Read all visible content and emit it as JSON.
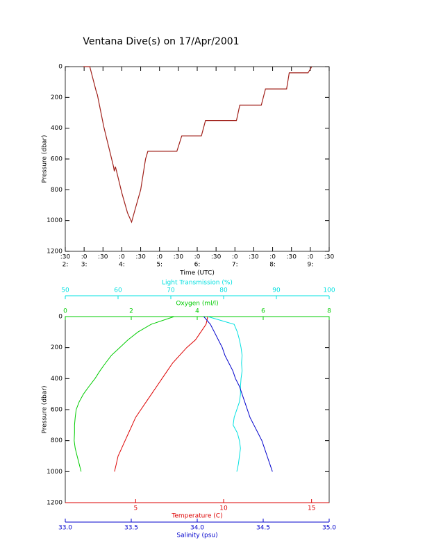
{
  "chart_data": [
    {
      "type": "line",
      "title": "Ventana Dive(s) on 17/Apr/2001",
      "xlabel": "Time (UTC)",
      "ylabel": "Pressure (dbar)",
      "xlim": [
        2.5,
        9.5
      ],
      "xticks": [
        {
          "value": 2.5,
          "label": ":30"
        },
        {
          "value": 3,
          "label": ":0"
        },
        {
          "value": 3.5,
          "label": ":30"
        },
        {
          "value": 4,
          "label": ":0"
        },
        {
          "value": 4.5,
          "label": ":30"
        },
        {
          "value": 5,
          "label": ":0"
        },
        {
          "value": 5.5,
          "label": ":30"
        },
        {
          "value": 6,
          "label": ":0"
        },
        {
          "value": 6.5,
          "label": ":30"
        },
        {
          "value": 7,
          "label": ":0"
        },
        {
          "value": 7.5,
          "label": ":30"
        },
        {
          "value": 8,
          "label": ":0"
        },
        {
          "value": 8.5,
          "label": ":30"
        },
        {
          "value": 9,
          "label": ":0"
        },
        {
          "value": 9.5,
          "label": ":30"
        }
      ],
      "xticks_hours": [
        {
          "value": 2.5,
          "label": "2:"
        },
        {
          "value": 3,
          "label": "3:"
        },
        {
          "value": 4,
          "label": "4:"
        },
        {
          "value": 5,
          "label": "5:"
        },
        {
          "value": 6,
          "label": "6:"
        },
        {
          "value": 7,
          "label": "7:"
        },
        {
          "value": 8,
          "label": "8:"
        },
        {
          "value": 9,
          "label": "9:"
        }
      ],
      "ylim": [
        1200,
        0
      ],
      "yticks": [
        0,
        200,
        400,
        600,
        800,
        1000,
        1200
      ],
      "x": [
        2.98,
        3.15,
        3.33,
        3.35,
        3.52,
        3.78,
        3.8,
        3.83,
        3.87,
        4.0,
        4.15,
        4.26,
        4.35,
        4.5,
        4.63,
        4.69,
        5.46,
        5.59,
        6.11,
        6.22,
        7.04,
        7.13,
        7.7,
        7.81,
        8.37,
        8.44,
        8.94,
        9.04
      ],
      "series": [
        {
          "color": "#a0201a",
          "values": [
            0,
            0,
            170,
            180,
            390,
            650,
            680,
            650,
            690,
            820,
            950,
            1010,
            930,
            800,
            600,
            550,
            550,
            450,
            450,
            350,
            350,
            250,
            250,
            145,
            145,
            40,
            40,
            0
          ]
        }
      ]
    },
    {
      "type": "profile",
      "ylabel": "Pressure (dbar)",
      "ylim": [
        1200,
        0
      ],
      "yticks": [
        0,
        200,
        400,
        600,
        800,
        1000,
        1200
      ],
      "y": [
        0,
        50,
        100,
        150,
        200,
        250,
        300,
        350,
        400,
        450,
        500,
        550,
        600,
        650,
        700,
        750,
        800,
        850,
        900,
        950,
        1000
      ],
      "axes": [
        {
          "label": "Oxygen (ml/l)",
          "color": "#00cc00",
          "lim": [
            0,
            8
          ],
          "ticks": [
            0,
            2,
            4,
            6,
            8
          ],
          "side": "top"
        },
        {
          "label": "Light Transmission (%)",
          "color": "#00e0e0",
          "lim": [
            50,
            100
          ],
          "ticks": [
            50,
            60,
            70,
            80,
            90,
            100
          ],
          "side": "top"
        },
        {
          "label": "Temperature (C)",
          "color": "#dd0000",
          "lim": [
            1,
            16
          ],
          "ticks": [
            5,
            10,
            15
          ],
          "side": "bottom"
        },
        {
          "label": "Salinity (psu)",
          "color": "#0000cc",
          "lim": [
            33,
            35
          ],
          "ticks": [
            {
              "value": 33,
              "label": "33.0"
            },
            33.5,
            {
              "value": 34,
              "label": "34.0"
            },
            34.5,
            {
              "value": 35,
              "label": "35.0"
            }
          ],
          "side": "bottom"
        }
      ],
      "series": [
        {
          "axis": 0,
          "color": "#00cc00",
          "values": [
            3.3,
            2.6,
            2.2,
            1.9,
            1.65,
            1.4,
            1.22,
            1.05,
            0.9,
            0.72,
            0.55,
            0.42,
            0.33,
            0.3,
            0.28,
            0.28,
            0.27,
            0.3,
            0.36,
            0.42,
            0.48
          ]
        },
        {
          "axis": 1,
          "color": "#00e0e0",
          "values": [
            77,
            82,
            82.6,
            83,
            83.3,
            83.5,
            83.4,
            83.5,
            83.3,
            83.2,
            83.2,
            83,
            82.5,
            82,
            81.8,
            82.6,
            83,
            83.2,
            83,
            82.8,
            82.5
          ]
        },
        {
          "axis": 2,
          "color": "#dd0000",
          "values": [
            9.1,
            9.0,
            8.7,
            8.4,
            7.9,
            7.5,
            7.1,
            6.8,
            6.5,
            6.2,
            5.9,
            5.6,
            5.3,
            5.0,
            4.8,
            4.6,
            4.4,
            4.2,
            4.0,
            3.9,
            3.8
          ]
        },
        {
          "axis": 3,
          "color": "#0000cc",
          "values": [
            34.05,
            34.1,
            34.13,
            34.16,
            34.19,
            34.21,
            34.24,
            34.27,
            34.29,
            34.32,
            34.34,
            34.36,
            34.38,
            34.4,
            34.43,
            34.46,
            34.49,
            34.51,
            34.53,
            34.55,
            34.57
          ]
        }
      ]
    }
  ]
}
